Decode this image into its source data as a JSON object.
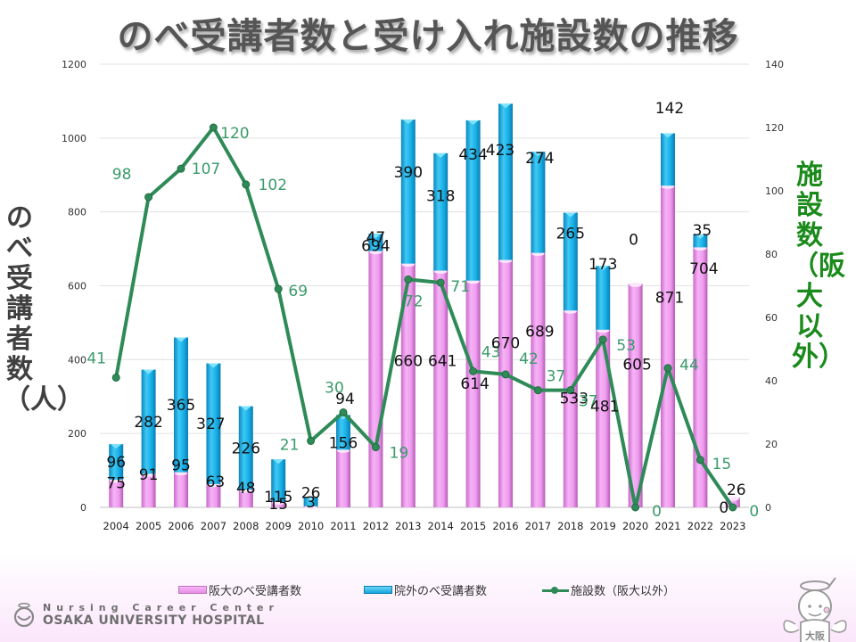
{
  "slide": {
    "title": "のべ受講者数と受け入れ施設数の推移",
    "footer": {
      "line1": "Nursing Career Center",
      "line2": "OSAKA UNIVERSITY HOSPITAL",
      "mascot_badge": "大阪"
    }
  },
  "chart_data": {
    "type": "bar",
    "stacked": true,
    "title": "のべ受講者数と受け入れ施設数の推移",
    "xlabel": "",
    "ylabel": "のべ受講者数（人）",
    "y2label": "施設数（阪大以外）",
    "ylim": [
      0,
      1200
    ],
    "yticks": [
      0,
      200,
      400,
      600,
      800,
      1000,
      1200
    ],
    "y2lim": [
      0,
      140
    ],
    "y2ticks": [
      0,
      20,
      40,
      60,
      80,
      100,
      120,
      140
    ],
    "grid": true,
    "legend_position": "bottom",
    "categories": [
      "2004",
      "2005",
      "2006",
      "2007",
      "2008",
      "2009",
      "2010",
      "2011",
      "2012",
      "2013",
      "2014",
      "2015",
      "2016",
      "2017",
      "2018",
      "2019",
      "2020",
      "2021",
      "2022",
      "2023"
    ],
    "series": [
      {
        "name": "阪大のべ受講者数",
        "kind": "bar",
        "axis": "left",
        "color": "#ee99ee",
        "values": [
          75,
          91,
          95,
          63,
          48,
          15,
          3,
          156,
          694,
          660,
          641,
          614,
          670,
          689,
          533,
          481,
          605,
          871,
          704,
          26
        ]
      },
      {
        "name": "院外のべ受講者数",
        "kind": "bar",
        "axis": "left",
        "color": "#1ab0e8",
        "values": [
          96,
          282,
          365,
          327,
          226,
          115,
          26,
          94,
          47,
          390,
          318,
          434,
          423,
          274,
          265,
          173,
          0,
          142,
          35,
          0
        ]
      },
      {
        "name": "施設数（阪大以外）",
        "kind": "line",
        "axis": "right",
        "color": "#2e8b57",
        "values": [
          41,
          98,
          107,
          120,
          102,
          69,
          21,
          30,
          19,
          72,
          71,
          43,
          42,
          37,
          37,
          53,
          0,
          44,
          15,
          0
        ]
      }
    ]
  }
}
